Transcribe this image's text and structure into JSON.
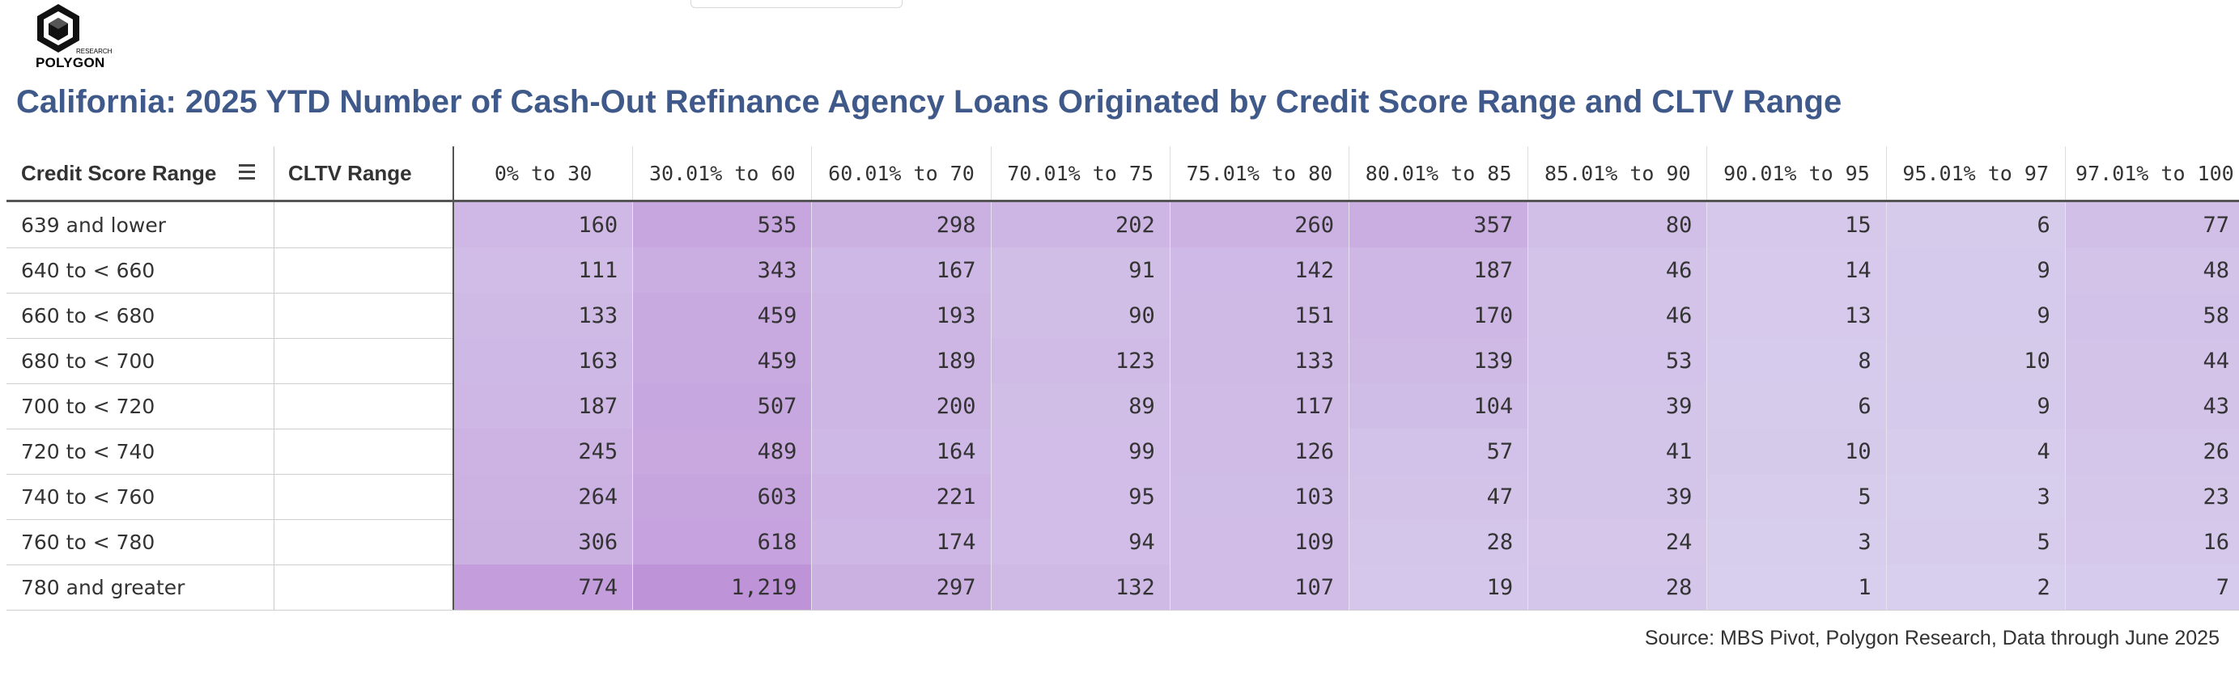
{
  "logo": {
    "name": "POLYGON",
    "sub": "RESEARCH"
  },
  "title": "California: 2025 YTD Number of Cash-Out Refinance Agency Loans Originated by Credit Score Range and CLTV Range",
  "source": "Source: MBS Pivot, Polygon Research, Data through June 2025",
  "colors": {
    "title": "#3f5a8a",
    "cell_low": "#d9d1ee",
    "cell_high": "#bf93d8"
  },
  "chart_data": {
    "type": "table",
    "row_dimension": "Credit Score Range",
    "column_dimension": "CLTV Range",
    "columns": [
      "0% to 30",
      "30.01% to 60",
      "60.01% to 70",
      "70.01% to 75",
      "75.01% to 80",
      "80.01% to 85",
      "85.01% to 90",
      "90.01% to 95",
      "95.01% to 97",
      "97.01% to 100"
    ],
    "rows": [
      {
        "label": "639 and lower",
        "values": [
          "160",
          "535",
          "298",
          "202",
          "260",
          "357",
          "80",
          "15",
          "6",
          "77"
        ]
      },
      {
        "label": "640 to < 660",
        "values": [
          "111",
          "343",
          "167",
          "91",
          "142",
          "187",
          "46",
          "14",
          "9",
          "48"
        ]
      },
      {
        "label": "660 to < 680",
        "values": [
          "133",
          "459",
          "193",
          "90",
          "151",
          "170",
          "46",
          "13",
          "9",
          "58"
        ]
      },
      {
        "label": "680 to < 700",
        "values": [
          "163",
          "459",
          "189",
          "123",
          "133",
          "139",
          "53",
          "8",
          "10",
          "44"
        ]
      },
      {
        "label": "700 to < 720",
        "values": [
          "187",
          "507",
          "200",
          "89",
          "117",
          "104",
          "39",
          "6",
          "9",
          "43"
        ]
      },
      {
        "label": "720 to < 740",
        "values": [
          "245",
          "489",
          "164",
          "99",
          "126",
          "57",
          "41",
          "10",
          "4",
          "26"
        ]
      },
      {
        "label": "740 to < 760",
        "values": [
          "264",
          "603",
          "221",
          "95",
          "103",
          "47",
          "39",
          "5",
          "3",
          "23"
        ]
      },
      {
        "label": "760 to < 780",
        "values": [
          "306",
          "618",
          "174",
          "94",
          "109",
          "28",
          "24",
          "3",
          "5",
          "16"
        ]
      },
      {
        "label": "780 and greater",
        "values": [
          "774",
          "1,219",
          "297",
          "132",
          "107",
          "19",
          "28",
          "1",
          "2",
          "7"
        ]
      }
    ]
  }
}
